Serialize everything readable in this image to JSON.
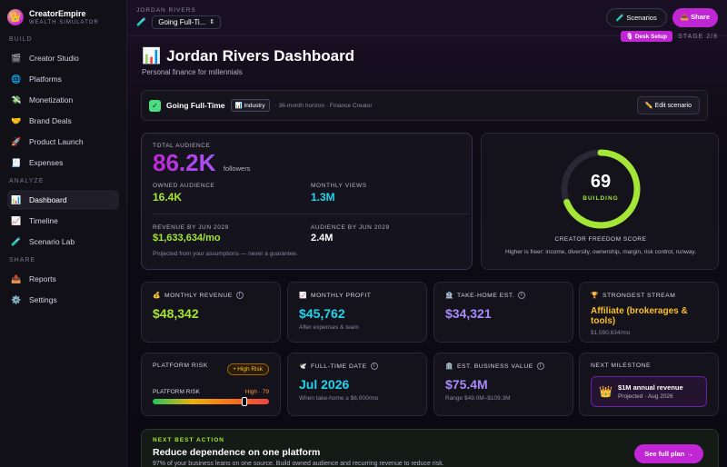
{
  "brand": {
    "name": "CreatorEmpire",
    "subtitle": "WEALTH SIMULATOR",
    "logo_icon": "crown-icon"
  },
  "sidebar": {
    "sections": [
      {
        "label": "BUILD",
        "items": [
          {
            "label": "Creator Studio",
            "icon": "🎬"
          },
          {
            "label": "Platforms",
            "icon": "🌐"
          },
          {
            "label": "Monetization",
            "icon": "💸"
          },
          {
            "label": "Brand Deals",
            "icon": "🤝"
          },
          {
            "label": "Product Launch",
            "icon": "🚀"
          },
          {
            "label": "Expenses",
            "icon": "🧾"
          }
        ]
      },
      {
        "label": "ANALYZE",
        "items": [
          {
            "label": "Dashboard",
            "icon": "📊",
            "active": true
          },
          {
            "label": "Timeline",
            "icon": "📈"
          },
          {
            "label": "Scenario Lab",
            "icon": "🧪"
          }
        ]
      },
      {
        "label": "SHARE",
        "items": [
          {
            "label": "Reports",
            "icon": "📤"
          },
          {
            "label": "Settings",
            "icon": "⚙️"
          }
        ]
      }
    ]
  },
  "topbar": {
    "crumb_label": "JORDAN RIVERS",
    "scenario_value": "Going Full-Ti...",
    "scenarios_button": "Scenarios",
    "share_button": "Share"
  },
  "header": {
    "title": "Jordan Rivers Dashboard",
    "subtitle": "Personal finance for millennials",
    "desk_badge": "Desk Setup",
    "stage": "STAGE 2/8"
  },
  "scenario": {
    "name": "Going Full-Time",
    "tag": "Industry",
    "meta": "· 36-month horizon · Finance Creator",
    "edit_button": "Edit scenario"
  },
  "audience": {
    "total_label": "TOTAL AUDIENCE",
    "total_value": "86.2K",
    "total_unit": "followers",
    "owned_label": "OWNED AUDIENCE",
    "owned_value": "16.4K",
    "views_label": "MONTHLY VIEWS",
    "views_value": "1.3M",
    "revenue_label": "REVENUE BY JUN 2029",
    "revenue_value": "$1,633,634/mo",
    "aud_by_label": "AUDIENCE BY JUN 2029",
    "aud_by_value": "2.4M",
    "footnote": "Projected from your assumptions — never a guarantee."
  },
  "score": {
    "value": "69",
    "value_num": 69,
    "status": "BUILDING",
    "label": "CREATOR FREEDOM SCORE",
    "hint": "Higher is freer: income, diversity, ownership, margin, risk control, runway.",
    "ring_color": "#a3e635"
  },
  "metrics": {
    "revenue": {
      "label": "MONTHLY REVENUE",
      "value": "$48,342",
      "icon": "💰"
    },
    "profit": {
      "label": "MONTHLY PROFIT",
      "value": "$45,762",
      "sub": "After expenses & team",
      "icon": "📈"
    },
    "takehome": {
      "label": "TAKE-HOME EST.",
      "value": "$34,321",
      "icon": "🏦"
    },
    "stream": {
      "label": "STRONGEST STREAM",
      "value": "Affiliate (brokerages & tools)",
      "sub": "$1,590,634/mo",
      "icon": "🏆"
    }
  },
  "risk": {
    "label": "PLATFORM RISK",
    "badge": "High Risk",
    "bar_label": "PLATFORM RISK",
    "bar_value": "High · 79",
    "level": 79
  },
  "fulltime": {
    "label": "FULL-TIME DATE",
    "value": "Jul 2026",
    "sub": "When take-home ≥ $6,000/mo",
    "icon": "🕊️"
  },
  "business": {
    "label": "EST. BUSINESS VALUE",
    "value": "$75.4M",
    "sub": "Range $49.0M–$109.3M",
    "icon": "🏛️"
  },
  "milestone": {
    "label": "NEXT MILESTONE",
    "title": "$1M annual revenue",
    "sub": "Projected · Aug 2026",
    "icon": "👑"
  },
  "action": {
    "label": "NEXT BEST ACTION",
    "title": "Reduce dependence on one platform",
    "sub": "97% of your business leans on one source. Build owned audience and recurring revenue to reduce risk.",
    "button": "See full plan →"
  }
}
